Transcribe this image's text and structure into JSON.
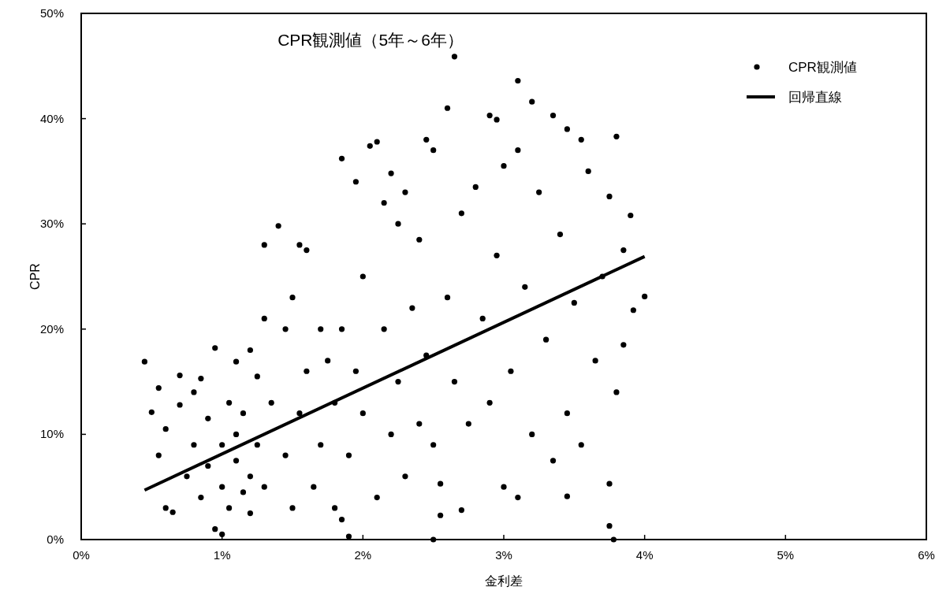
{
  "chart_data": {
    "type": "scatter",
    "title": "CPR観測値（5年～6年）",
    "xlabel": "金利差",
    "ylabel": "CPR",
    "xlim": [
      0,
      6
    ],
    "ylim": [
      0,
      50
    ],
    "xticks": [
      {
        "value": 0,
        "label": "0%"
      },
      {
        "value": 1,
        "label": "1%"
      },
      {
        "value": 2,
        "label": "2%"
      },
      {
        "value": 3,
        "label": "3%"
      },
      {
        "value": 4,
        "label": "4%"
      },
      {
        "value": 5,
        "label": "5%"
      },
      {
        "value": 6,
        "label": "6%"
      }
    ],
    "yticks": [
      {
        "value": 0,
        "label": "0%"
      },
      {
        "value": 10,
        "label": "10%"
      },
      {
        "value": 20,
        "label": "20%"
      },
      {
        "value": 30,
        "label": "30%"
      },
      {
        "value": 40,
        "label": "40%"
      },
      {
        "value": 50,
        "label": "50%"
      }
    ],
    "grid": false,
    "legend": "top right",
    "series": [
      {
        "name": "CPR観測値",
        "marker": "circle",
        "color": "#000000",
        "x": [
          0.45,
          0.5,
          0.55,
          0.55,
          0.6,
          0.65,
          0.6,
          0.7,
          0.7,
          0.75,
          0.8,
          0.8,
          0.85,
          0.85,
          0.9,
          0.9,
          0.95,
          0.95,
          1.0,
          1.0,
          1.0,
          1.05,
          1.05,
          1.1,
          1.1,
          1.1,
          1.15,
          1.15,
          1.2,
          1.2,
          1.2,
          1.25,
          1.25,
          1.3,
          1.3,
          1.35,
          1.3,
          1.4,
          1.45,
          1.45,
          1.5,
          1.5,
          1.55,
          1.6,
          1.55,
          1.6,
          1.65,
          1.7,
          1.7,
          1.75,
          1.8,
          1.8,
          1.85,
          1.85,
          1.85,
          1.9,
          1.9,
          1.95,
          1.95,
          2.0,
          2.0,
          2.05,
          2.1,
          2.1,
          2.15,
          2.15,
          2.2,
          2.2,
          2.25,
          2.25,
          2.3,
          2.3,
          2.35,
          2.4,
          2.4,
          2.45,
          2.45,
          2.5,
          2.5,
          2.5,
          2.55,
          2.55,
          2.6,
          2.6,
          2.65,
          2.65,
          2.7,
          2.7,
          2.75,
          2.8,
          2.85,
          2.9,
          2.9,
          2.95,
          2.95,
          3.0,
          3.0,
          3.05,
          3.1,
          3.1,
          3.1,
          3.15,
          3.2,
          3.2,
          3.25,
          3.3,
          3.35,
          3.35,
          3.4,
          3.45,
          3.45,
          3.45,
          3.5,
          3.55,
          3.55,
          3.6,
          3.65,
          3.7,
          3.75,
          3.75,
          3.75,
          3.78,
          3.8,
          3.8,
          3.85,
          3.85,
          3.9,
          3.92,
          4.0
        ],
        "values": [
          16.9,
          12.1,
          14.4,
          8,
          3,
          2.6,
          10.5,
          15.6,
          12.8,
          6,
          14,
          9,
          4,
          15.3,
          7,
          11.5,
          1,
          18.2,
          5,
          9,
          0.5,
          13,
          3,
          16.9,
          7.5,
          10,
          4.5,
          12,
          6,
          18,
          2.5,
          9,
          15.5,
          21,
          5,
          13,
          28,
          29.8,
          20,
          8,
          3,
          23,
          28,
          27.5,
          12,
          16,
          5,
          20,
          9,
          17,
          13,
          3,
          36.2,
          20,
          1.9,
          8,
          0.3,
          34,
          16,
          12,
          25,
          37.4,
          37.8,
          4,
          32,
          20,
          10,
          34.8,
          30,
          15,
          33,
          6,
          22,
          11,
          28.5,
          38,
          17.5,
          0,
          37,
          9,
          2.3,
          5.3,
          41,
          23,
          45.9,
          15,
          2.8,
          31,
          11,
          33.5,
          21,
          40.3,
          13,
          39.9,
          27,
          35.5,
          5,
          16,
          43.6,
          4,
          37,
          24,
          41.6,
          10,
          33,
          19,
          40.3,
          7.5,
          29,
          39,
          4.1,
          12,
          22.5,
          38,
          9,
          35,
          17,
          25,
          1.3,
          5.3,
          32.6,
          0,
          38.3,
          14,
          27.5,
          18.5,
          30.8,
          21.8,
          23.1
        ]
      },
      {
        "name": "回帰直線",
        "type": "line",
        "line_style": "solid",
        "color": "#000000",
        "x": [
          0.45,
          4.0
        ],
        "values": [
          4.7,
          26.9
        ]
      }
    ]
  }
}
